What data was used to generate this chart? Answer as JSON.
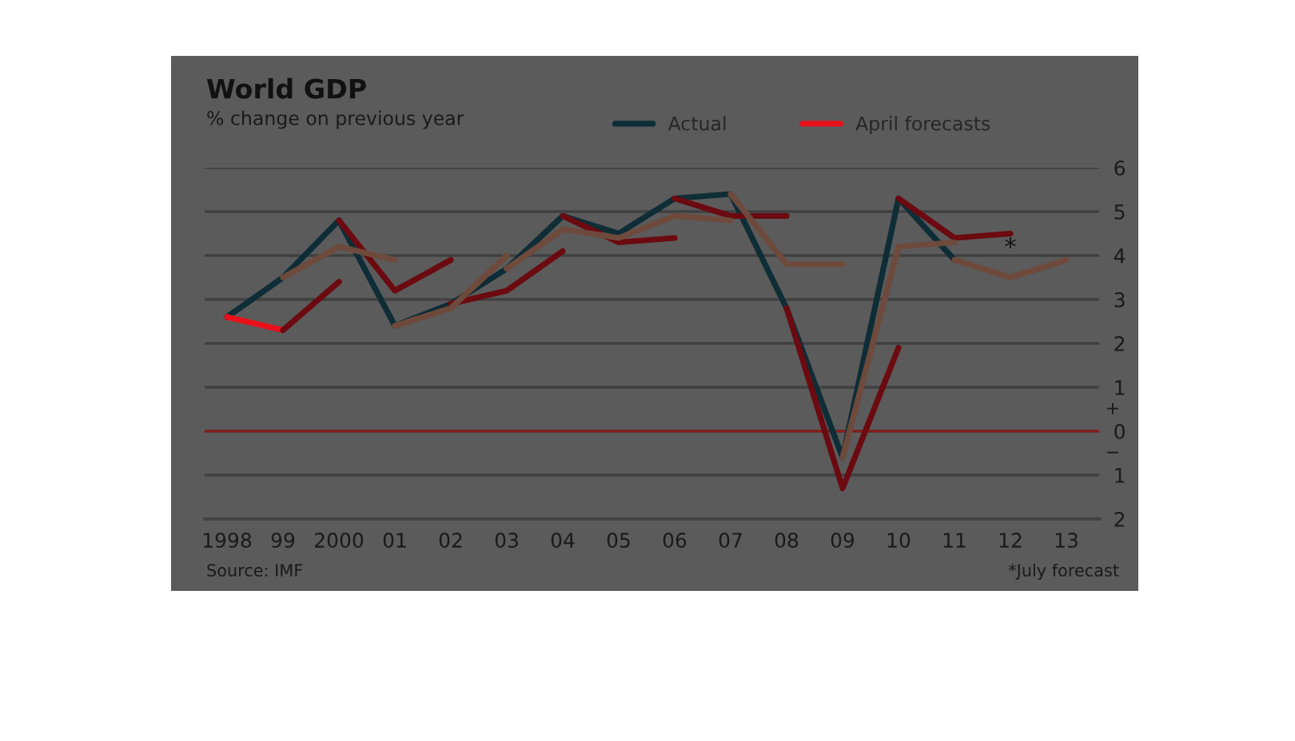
{
  "chart_data": {
    "type": "line",
    "title": "World GDP",
    "subtitle": "% change on previous year",
    "xlim": [
      1997.6,
      2013.6
    ],
    "xticks": [
      {
        "value": 1998,
        "label": "1998"
      },
      {
        "value": 1999,
        "label": "99"
      },
      {
        "value": 2000,
        "label": "2000"
      },
      {
        "value": 2001,
        "label": "01"
      },
      {
        "value": 2002,
        "label": "02"
      },
      {
        "value": 2003,
        "label": "03"
      },
      {
        "value": 2004,
        "label": "04"
      },
      {
        "value": 2005,
        "label": "05"
      },
      {
        "value": 2006,
        "label": "06"
      },
      {
        "value": 2007,
        "label": "07"
      },
      {
        "value": 2008,
        "label": "08"
      },
      {
        "value": 2009,
        "label": "09"
      },
      {
        "value": 2010,
        "label": "10"
      },
      {
        "value": 2011,
        "label": "11"
      },
      {
        "value": 2012,
        "label": "12"
      },
      {
        "value": 2013,
        "label": "13"
      }
    ],
    "ylim": [
      -2,
      6
    ],
    "yticks": [
      {
        "value": -2,
        "label": "2"
      },
      {
        "value": -1,
        "label": "1"
      },
      0,
      1,
      2,
      3,
      4,
      5,
      6
    ],
    "grid": "y",
    "legend": "top",
    "marker": "none",
    "line_style": "solid",
    "ref_lines": [
      {
        "axis": "y",
        "value": 0,
        "color": "#8b1a1a"
      }
    ],
    "series": [
      {
        "name": "Actual",
        "color": "#0e2d36",
        "x": [
          1998,
          1999,
          2000,
          2001,
          2002,
          2003,
          2004,
          2005,
          2006,
          2007,
          2008,
          2009,
          2010,
          2011
        ],
        "values": [
          2.6,
          3.5,
          4.8,
          2.4,
          2.9,
          3.7,
          4.9,
          4.5,
          5.3,
          5.4,
          2.8,
          -0.6,
          5.3,
          3.9
        ]
      },
      {
        "name": "April forecasts",
        "color": "#e8101a",
        "x": [
          1998,
          1999
        ],
        "values": [
          2.6,
          2.3
        ]
      },
      {
        "color": "#6b0a10",
        "x": [
          1999,
          2000
        ],
        "values": [
          2.3,
          3.4
        ]
      },
      {
        "color": "#6b0a10",
        "x": [
          2000,
          2001,
          2002
        ],
        "values": [
          4.8,
          3.2,
          3.9
        ]
      },
      {
        "color": "#6b0a10",
        "x": [
          2002,
          2003,
          2004
        ],
        "values": [
          2.9,
          3.2,
          4.1
        ]
      },
      {
        "color": "#6b0a10",
        "x": [
          2004,
          2005,
          2006
        ],
        "values": [
          4.9,
          4.3,
          4.4
        ]
      },
      {
        "color": "#6b0a10",
        "x": [
          2006,
          2007,
          2008
        ],
        "values": [
          5.3,
          4.9,
          4.9
        ]
      },
      {
        "color": "#6b0a10",
        "x": [
          2008,
          2009,
          2010
        ],
        "values": [
          2.8,
          -1.3,
          1.9
        ]
      },
      {
        "color": "#6b0a10",
        "x": [
          2010,
          2011,
          2012
        ],
        "values": [
          5.3,
          4.4,
          4.5
        ]
      },
      {
        "color": "#6e4a3c",
        "x": [
          1999,
          2000,
          2001
        ],
        "values": [
          3.5,
          4.2,
          3.9
        ]
      },
      {
        "color": "#6e4a3c",
        "x": [
          2001,
          2002,
          2003
        ],
        "values": [
          2.4,
          2.8,
          4.0
        ]
      },
      {
        "color": "#6e4a3c",
        "x": [
          2003,
          2004,
          2005,
          2006,
          2007
        ],
        "values": [
          3.7,
          4.6,
          4.4,
          4.9,
          4.8
        ]
      },
      {
        "color": "#6e4a3c",
        "x": [
          2007,
          2008,
          2009
        ],
        "values": [
          5.4,
          3.8,
          3.8
        ]
      },
      {
        "color": "#6e4a3c",
        "x": [
          2009,
          2010,
          2011
        ],
        "values": [
          -0.6,
          4.2,
          4.3
        ]
      },
      {
        "color": "#6e4a3c",
        "x": [
          2011,
          2012,
          2013
        ],
        "values": [
          3.9,
          3.5,
          3.9
        ]
      }
    ],
    "annotations": [
      {
        "text": "*",
        "x": 2012,
        "y": 3.5
      },
      "+",
      "−",
      "Source: IMF",
      "*July forecast"
    ]
  }
}
